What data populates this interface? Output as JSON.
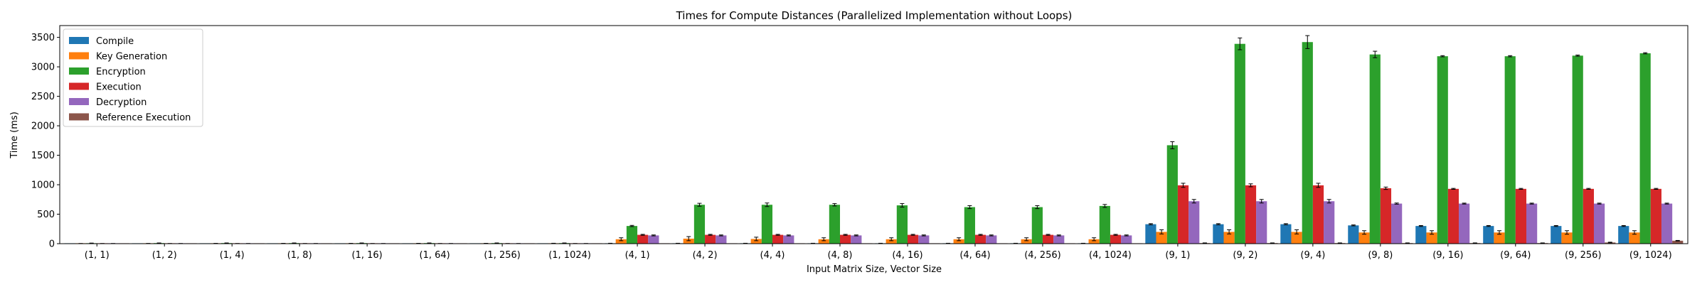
{
  "chart_data": {
    "type": "bar",
    "title": "Times for Compute Distances (Parallelized Implementation without Loops)",
    "xlabel": "Input Matrix Size, Vector Size",
    "ylabel": "Time (ms)",
    "ylim": [
      0,
      3700
    ],
    "yticks": [
      0,
      500,
      1000,
      1500,
      2000,
      2500,
      3000,
      3500
    ],
    "grid": false,
    "legend_position": "top-left",
    "categories": [
      "(1, 1)",
      "(1, 2)",
      "(1, 4)",
      "(1, 8)",
      "(1, 16)",
      "(1, 64)",
      "(1, 256)",
      "(1, 1024)",
      "(4, 1)",
      "(4, 2)",
      "(4, 4)",
      "(4, 8)",
      "(4, 16)",
      "(4, 64)",
      "(4, 256)",
      "(4, 1024)",
      "(9, 1)",
      "(9, 2)",
      "(9, 4)",
      "(9, 8)",
      "(9, 16)",
      "(9, 64)",
      "(9, 256)",
      "(9, 1024)"
    ],
    "series": [
      {
        "name": "Compile",
        "color": "#1f77b4",
        "values": [
          1,
          1,
          1,
          1,
          1,
          1,
          1,
          1,
          5,
          5,
          5,
          5,
          5,
          5,
          5,
          5,
          330,
          330,
          330,
          310,
          300,
          300,
          300,
          300
        ],
        "errors": [
          0,
          0,
          0,
          0,
          0,
          0,
          0,
          0,
          2,
          2,
          2,
          2,
          2,
          2,
          2,
          2,
          10,
          10,
          10,
          8,
          8,
          8,
          8,
          8
        ]
      },
      {
        "name": "Key Generation",
        "color": "#ff7f0e",
        "values": [
          2,
          3,
          4,
          4,
          4,
          5,
          5,
          6,
          75,
          85,
          80,
          75,
          75,
          75,
          75,
          75,
          200,
          200,
          200,
          190,
          190,
          190,
          190,
          190
        ],
        "errors": [
          1,
          1,
          1,
          1,
          1,
          1,
          1,
          1,
          25,
          35,
          30,
          25,
          25,
          25,
          25,
          25,
          35,
          35,
          35,
          30,
          30,
          30,
          30,
          30
        ]
      },
      {
        "name": "Encryption",
        "color": "#2ca02c",
        "values": [
          8,
          10,
          10,
          10,
          10,
          10,
          10,
          10,
          300,
          660,
          660,
          660,
          650,
          620,
          620,
          640,
          1670,
          3390,
          3420,
          3210,
          3180,
          3180,
          3190,
          3230
        ],
        "errors": [
          2,
          2,
          2,
          2,
          2,
          2,
          2,
          2,
          10,
          25,
          30,
          20,
          30,
          25,
          25,
          25,
          60,
          100,
          110,
          55,
          10,
          10,
          10,
          10
        ]
      },
      {
        "name": "Execution",
        "color": "#d62728",
        "values": [
          2,
          2,
          2,
          2,
          2,
          2,
          2,
          2,
          150,
          150,
          150,
          150,
          150,
          150,
          150,
          150,
          990,
          990,
          990,
          940,
          930,
          930,
          930,
          930
        ],
        "errors": [
          1,
          1,
          1,
          1,
          1,
          1,
          1,
          1,
          8,
          8,
          8,
          8,
          8,
          8,
          8,
          8,
          35,
          25,
          35,
          20,
          8,
          8,
          8,
          8
        ]
      },
      {
        "name": "Decryption",
        "color": "#9467bd",
        "values": [
          2,
          2,
          2,
          2,
          2,
          2,
          2,
          2,
          140,
          140,
          140,
          140,
          140,
          140,
          140,
          140,
          720,
          720,
          720,
          680,
          680,
          680,
          680,
          680
        ],
        "errors": [
          1,
          1,
          1,
          1,
          1,
          1,
          1,
          1,
          8,
          8,
          8,
          8,
          8,
          8,
          8,
          8,
          30,
          30,
          30,
          10,
          8,
          8,
          8,
          8
        ]
      },
      {
        "name": "Reference Execution",
        "color": "#8c564b",
        "values": [
          1,
          1,
          1,
          1,
          1,
          1,
          1,
          1,
          1,
          1,
          1,
          1,
          1,
          1,
          1,
          1,
          10,
          10,
          10,
          10,
          10,
          10,
          20,
          50
        ],
        "errors": [
          0,
          0,
          0,
          0,
          0,
          0,
          0,
          0,
          0,
          0,
          0,
          0,
          0,
          0,
          0,
          0,
          3,
          3,
          3,
          3,
          3,
          3,
          5,
          5
        ]
      }
    ]
  }
}
